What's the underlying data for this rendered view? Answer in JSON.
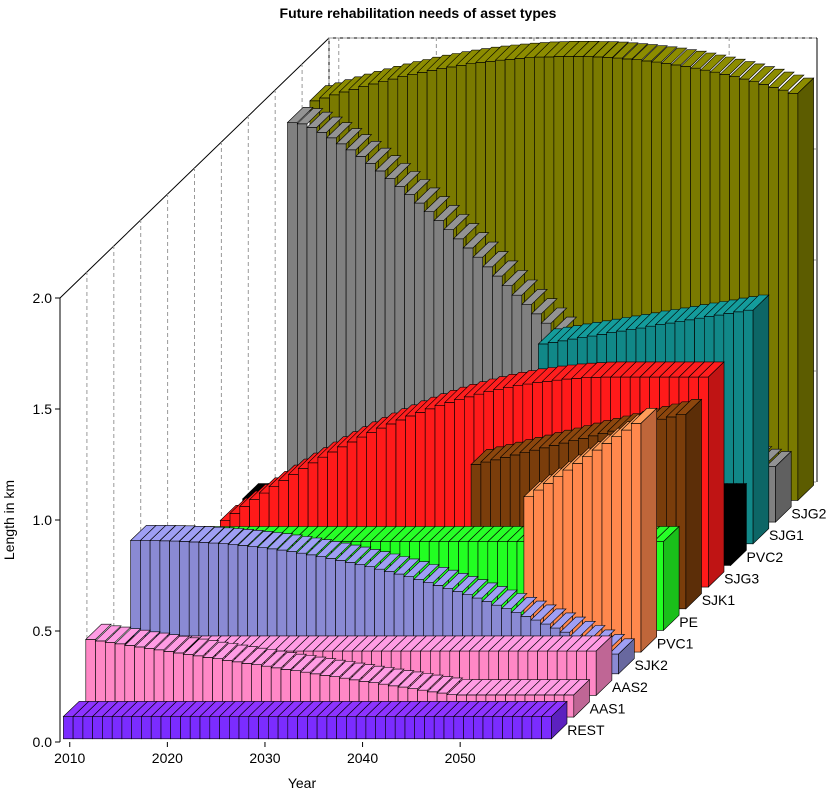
{
  "chart_data": {
    "type": "bar",
    "subtype": "3d-bar",
    "title": "Future rehabilitation needs of asset types",
    "xlabel": "Year",
    "ylabel": "Length in km",
    "ylim": [
      0,
      2.0
    ],
    "yticks": [
      "0.0",
      "0.5",
      "1.0",
      "1.5",
      "2.0"
    ],
    "xticks": [
      "2010",
      "2020",
      "2030",
      "2040",
      "2050"
    ],
    "x_range": [
      2009,
      2059
    ],
    "grid": true,
    "series": [
      {
        "name": "REST",
        "color": "#7b2cff",
        "start": 2009,
        "end": 2059,
        "values": [
          0.1,
          0.1,
          0.1,
          0.1,
          0.1,
          0.1,
          0.1,
          0.1,
          0.1,
          0.1,
          0.1,
          0.1,
          0.1,
          0.1,
          0.1,
          0.1,
          0.1,
          0.1,
          0.1,
          0.1,
          0.1,
          0.1,
          0.1,
          0.1,
          0.1,
          0.1,
          0.1,
          0.1,
          0.1,
          0.1,
          0.1,
          0.1,
          0.1,
          0.1,
          0.1,
          0.1,
          0.1,
          0.1,
          0.1,
          0.1,
          0.1,
          0.1,
          0.1,
          0.1,
          0.1,
          0.1,
          0.1,
          0.1,
          0.1,
          0.1
        ]
      },
      {
        "name": "AAS1",
        "color": "#ff88c6",
        "start": 2009,
        "end": 2059,
        "values": [
          0.35,
          0.343,
          0.337,
          0.33,
          0.323,
          0.316,
          0.31,
          0.303,
          0.296,
          0.289,
          0.283,
          0.276,
          0.269,
          0.263,
          0.256,
          0.249,
          0.242,
          0.236,
          0.229,
          0.222,
          0.215,
          0.209,
          0.202,
          0.195,
          0.188,
          0.182,
          0.175,
          0.168,
          0.161,
          0.155,
          0.148,
          0.141,
          0.135,
          0.128,
          0.121,
          0.114,
          0.108,
          0.101,
          0.1,
          0.1,
          0.1,
          0.1,
          0.1,
          0.1,
          0.1,
          0.1,
          0.1,
          0.1,
          0.1,
          0.1
        ]
      },
      {
        "name": "AAS2",
        "color": "#ff88c6",
        "start": 2009,
        "end": 2059,
        "values": [
          0.2,
          0.2,
          0.2,
          0.2,
          0.2,
          0.2,
          0.2,
          0.2,
          0.2,
          0.2,
          0.2,
          0.2,
          0.2,
          0.2,
          0.2,
          0.2,
          0.2,
          0.2,
          0.2,
          0.2,
          0.2,
          0.2,
          0.2,
          0.2,
          0.2,
          0.2,
          0.2,
          0.2,
          0.2,
          0.2,
          0.2,
          0.2,
          0.2,
          0.2,
          0.2,
          0.2,
          0.2,
          0.2,
          0.2,
          0.2,
          0.2,
          0.2,
          0.2,
          0.2,
          0.2,
          0.2,
          0.2,
          0.2,
          0.2,
          0.2
        ]
      },
      {
        "name": "SJK2",
        "color": "#8a8ad4",
        "start": 2009,
        "end": 2059,
        "values": [
          0.6,
          0.6,
          0.6,
          0.599,
          0.598,
          0.596,
          0.594,
          0.592,
          0.589,
          0.586,
          0.582,
          0.578,
          0.573,
          0.568,
          0.563,
          0.557,
          0.55,
          0.543,
          0.536,
          0.528,
          0.52,
          0.511,
          0.502,
          0.492,
          0.482,
          0.471,
          0.46,
          0.449,
          0.437,
          0.424,
          0.411,
          0.398,
          0.384,
          0.37,
          0.356,
          0.341,
          0.325,
          0.309,
          0.293,
          0.276,
          0.259,
          0.242,
          0.224,
          0.206,
          0.187,
          0.168,
          0.149,
          0.129,
          0.109,
          0.089
        ]
      },
      {
        "name": "PVC1",
        "color": "#ff884d",
        "start": 2009,
        "end": 2059,
        "values": [
          0.1,
          0.1,
          0.1,
          0.1,
          0.1,
          0.1,
          0.1,
          0.1,
          0.1,
          0.1,
          0.1,
          0.1,
          0.1,
          0.1,
          0.1,
          0.1,
          0.1,
          0.1,
          0.1,
          0.1,
          0.1,
          0.1,
          0.1,
          0.1,
          0.1,
          0.1,
          0.1,
          0.1,
          0.1,
          0.1,
          0.1,
          0.1,
          0.1,
          0.1,
          0.1,
          0.1,
          0.1,
          0.1,
          0.7,
          0.73,
          0.76,
          0.79,
          0.82,
          0.85,
          0.88,
          0.91,
          0.94,
          0.97,
          1.0,
          1.03
        ]
      },
      {
        "name": "PE",
        "color": "#22ff22",
        "start": 2009,
        "end": 2059,
        "values": [
          0.4,
          0.4,
          0.4,
          0.4,
          0.4,
          0.4,
          0.4,
          0.4,
          0.4,
          0.4,
          0.4,
          0.4,
          0.4,
          0.4,
          0.4,
          0.4,
          0.4,
          0.4,
          0.4,
          0.4,
          0.4,
          0.4,
          0.4,
          0.4,
          0.4,
          0.4,
          0.4,
          0.4,
          0.4,
          0.4,
          0.4,
          0.4,
          0.4,
          0.4,
          0.4,
          0.4,
          0.4,
          0.4,
          0.4,
          0.4,
          0.4,
          0.4,
          0.4,
          0.4,
          0.4,
          0.4,
          0.4,
          0.4,
          0.4,
          0.4
        ]
      },
      {
        "name": "SJK1",
        "color": "#7a3d0b",
        "start": 2009,
        "end": 2059,
        "values": [
          0.1,
          0.1,
          0.1,
          0.1,
          0.1,
          0.1,
          0.1,
          0.1,
          0.1,
          0.1,
          0.1,
          0.1,
          0.1,
          0.1,
          0.1,
          0.1,
          0.1,
          0.1,
          0.1,
          0.1,
          0.1,
          0.1,
          0.1,
          0.1,
          0.1,
          0.1,
          0.1,
          0.1,
          0.65,
          0.661,
          0.671,
          0.682,
          0.693,
          0.704,
          0.714,
          0.725,
          0.736,
          0.746,
          0.757,
          0.768,
          0.779,
          0.789,
          0.8,
          0.811,
          0.821,
          0.832,
          0.843,
          0.854,
          0.864,
          0.875
        ]
      },
      {
        "name": "SJG3",
        "color": "#ff1a1a",
        "start": 2009,
        "end": 2059,
        "values": [
          0.3,
          0.332,
          0.364,
          0.394,
          0.424,
          0.453,
          0.481,
          0.508,
          0.535,
          0.56,
          0.585,
          0.609,
          0.632,
          0.654,
          0.676,
          0.696,
          0.716,
          0.735,
          0.753,
          0.771,
          0.787,
          0.803,
          0.818,
          0.832,
          0.845,
          0.857,
          0.869,
          0.88,
          0.89,
          0.899,
          0.907,
          0.915,
          0.921,
          0.927,
          0.932,
          0.937,
          0.94,
          0.943,
          0.945,
          0.946,
          0.946,
          0.946,
          0.946,
          0.946,
          0.946,
          0.946,
          0.946,
          0.946,
          0.946,
          0.946
        ]
      },
      {
        "name": "PVC2",
        "color": "#000000",
        "start": 2009,
        "end": 2059,
        "values": [
          0.3,
          0.3,
          0.3,
          0.3,
          0.3,
          0.3,
          0.3,
          0.3,
          0.3,
          0.3,
          0.3,
          0.3,
          0.3,
          0.3,
          0.3,
          0.3,
          0.3,
          0.3,
          0.3,
          0.3,
          0.3,
          0.3,
          0.3,
          0.3,
          0.3,
          0.3,
          0.3,
          0.3,
          0.3,
          0.3,
          0.3,
          0.3,
          0.3,
          0.3,
          0.3,
          0.3,
          0.3,
          0.3,
          0.3,
          0.3,
          0.3,
          0.3,
          0.3,
          0.3,
          0.3,
          0.3,
          0.3,
          0.3,
          0.3,
          0.3
        ]
      },
      {
        "name": "SJG1",
        "color": "#118888",
        "start": 2009,
        "end": 2059,
        "values": [
          0.1,
          0.1,
          0.1,
          0.1,
          0.1,
          0.1,
          0.1,
          0.1,
          0.1,
          0.1,
          0.1,
          0.1,
          0.1,
          0.1,
          0.1,
          0.1,
          0.1,
          0.1,
          0.1,
          0.1,
          0.1,
          0.1,
          0.1,
          0.1,
          0.1,
          0.1,
          0.1,
          0.1,
          0.9,
          0.907,
          0.914,
          0.922,
          0.929,
          0.936,
          0.943,
          0.951,
          0.958,
          0.965,
          0.972,
          0.98,
          0.987,
          0.994,
          1.001,
          1.009,
          1.016,
          1.023,
          1.03,
          1.038,
          1.045,
          1.052
        ]
      },
      {
        "name": "SJG2",
        "color": "#808080",
        "start": 2009,
        "end": 2059,
        "values": [
          1.8,
          1.794,
          1.778,
          1.756,
          1.731,
          1.704,
          1.677,
          1.647,
          1.616,
          1.582,
          1.547,
          1.511,
          1.475,
          1.437,
          1.398,
          1.358,
          1.317,
          1.276,
          1.235,
          1.193,
          1.15,
          1.108,
          1.065,
          1.022,
          0.98,
          0.938,
          0.896,
          0.855,
          0.814,
          0.775,
          0.735,
          0.697,
          0.66,
          0.624,
          0.589,
          0.556,
          0.523,
          0.492,
          0.463,
          0.435,
          0.408,
          0.383,
          0.36,
          0.338,
          0.319,
          0.301,
          0.285,
          0.272,
          0.26,
          0.25
        ]
      },
      {
        "name": "SJG2 (olive)",
        "color": "#7a7a00",
        "start": 2009,
        "end": 2059,
        "values": [
          1.8,
          1.813,
          1.827,
          1.84,
          1.852,
          1.864,
          1.876,
          1.887,
          1.898,
          1.909,
          1.918,
          1.928,
          1.937,
          1.945,
          1.953,
          1.96,
          1.967,
          1.973,
          1.978,
          1.983,
          1.987,
          1.991,
          1.994,
          1.997,
          1.998,
          2.0,
          2.0,
          2.0,
          1.999,
          1.998,
          1.996,
          1.993,
          1.989,
          1.985,
          1.98,
          1.975,
          1.969,
          1.962,
          1.955,
          1.947,
          1.938,
          1.929,
          1.919,
          1.909,
          1.898,
          1.886,
          1.874,
          1.861,
          1.848,
          1.834
        ]
      }
    ],
    "depth_labels": [
      "REST",
      "AAS1",
      "AAS2",
      "SJK2",
      "PVC1",
      "PE",
      "SJK1",
      "SJG3",
      "PVC2",
      "SJG1",
      "SJG2"
    ]
  }
}
